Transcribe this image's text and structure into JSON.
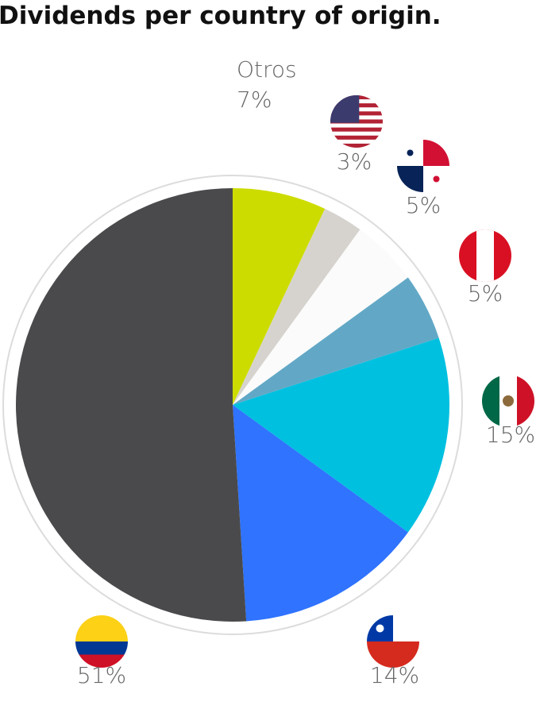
{
  "chart_data": {
    "type": "pie",
    "title": "Dividends per country of origin.",
    "categories": [
      "Otros",
      null,
      null,
      null,
      null,
      null,
      null
    ],
    "values": [
      7,
      3,
      5,
      5,
      15,
      14,
      51
    ],
    "value_labels": [
      "7%",
      "3%",
      "5%",
      "5%",
      "15%",
      "14%",
      "51%"
    ],
    "colors": [
      "#cddc00",
      "#d6d3ce",
      "#fbfbfb",
      "#62a8c6",
      "#00c0e0",
      "#2f73ff",
      "#4a4a4c"
    ]
  }
}
